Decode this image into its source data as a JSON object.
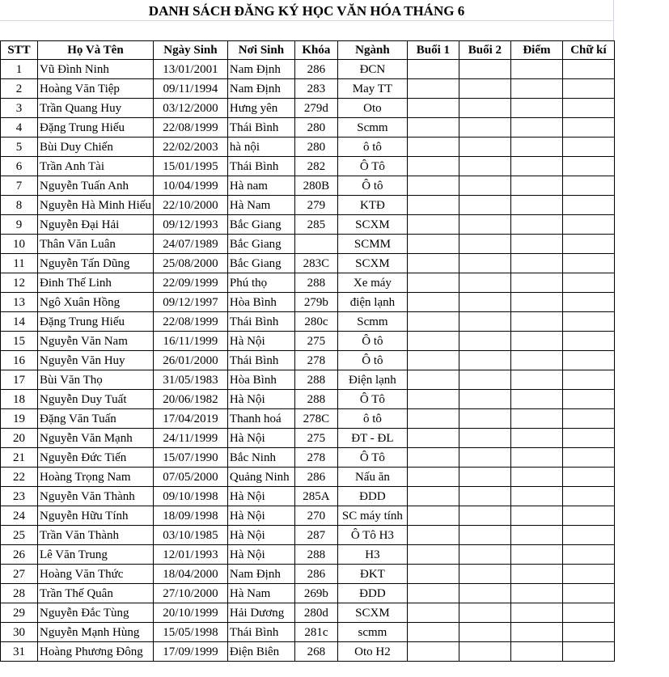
{
  "title": "DANH SÁCH ĐĂNG KÝ HỌC VĂN HÓA THÁNG 6",
  "headers": [
    "STT",
    "Họ Và Tên",
    "Ngày Sinh",
    "Nơi Sinh",
    "Khóa",
    "Ngành",
    "Buổi 1",
    "Buổi 2",
    "Điểm",
    "Chữ kí"
  ],
  "rows": [
    [
      "1",
      "Vũ Đình Ninh",
      "13/01/2001",
      "Nam Định",
      "286",
      "ĐCN"
    ],
    [
      "2",
      "Hoàng Văn Tiệp",
      "09/11/1994",
      "Nam Định",
      "283",
      "May TT"
    ],
    [
      "3",
      "Trần Quang Huy",
      "03/12/2000",
      "Hưng yên",
      "279d",
      "Oto"
    ],
    [
      "4",
      "Đặng Trung Hiếu",
      "22/08/1999",
      "Thái Bình",
      "280",
      "Scmm"
    ],
    [
      "5",
      "Bùi Duy Chiến",
      "22/02/2003",
      "hà nội",
      "280",
      "ô tô"
    ],
    [
      "6",
      "Trần Anh Tài",
      "15/01/1995",
      "Thái Bình",
      "282",
      "Ô Tô"
    ],
    [
      "7",
      "Nguyễn Tuấn Anh",
      "10/04/1999",
      "Hà nam",
      "280B",
      "Ô tô"
    ],
    [
      "8",
      "Nguyễn Hà Minh Hiếu",
      "22/10/2000",
      "Hà Nam",
      "279",
      "KTĐ"
    ],
    [
      "9",
      "Nguyễn Đại Hải",
      "09/12/1993",
      "Bắc Giang",
      "285",
      "SCXM"
    ],
    [
      "10",
      "Thân Văn Luân",
      "24/07/1989",
      "Bắc Giang",
      "",
      "SCMM"
    ],
    [
      "11",
      "Nguyễn Tấn Dũng",
      "25/08/2000",
      "Bắc Giang",
      "283C",
      "SCXM"
    ],
    [
      "12",
      "Đinh Thế Linh",
      "22/09/1999",
      "Phú thọ",
      "288",
      "Xe máy"
    ],
    [
      "13",
      "Ngô Xuân Hồng",
      "09/12/1997",
      "Hòa Bình",
      "279b",
      "điện lạnh"
    ],
    [
      "14",
      "Đặng Trung Hiếu",
      "22/08/1999",
      "Thái Bình",
      "280c",
      "Scmm"
    ],
    [
      "15",
      "Nguyễn Văn Nam",
      "16/11/1999",
      "Hà Nội",
      "275",
      "Ô tô"
    ],
    [
      "16",
      "Nguyễn Văn Huy",
      "26/01/2000",
      "Thái Bình",
      "278",
      "Ô tô"
    ],
    [
      "17",
      "Bùi Văn Thọ",
      "31/05/1983",
      "Hòa Bình",
      "288",
      "Điện lạnh"
    ],
    [
      "18",
      "Nguyễn Duy Tuất",
      "20/06/1982",
      "Hà Nội",
      "288",
      "Ô Tô"
    ],
    [
      "19",
      "Đặng Văn Tuấn",
      "17/04/2019",
      "Thanh hoá",
      "278C",
      "ô tô"
    ],
    [
      "20",
      "Nguyễn Văn Mạnh",
      "24/11/1999",
      "Hà Nội",
      "275",
      "ĐT - ĐL"
    ],
    [
      "21",
      "Nguyễn Đức Tiến",
      "15/07/1990",
      "Bắc Ninh",
      "278",
      "Ô Tô"
    ],
    [
      "22",
      "Hoàng Trọng Nam",
      "07/05/2000",
      "Quảng Ninh",
      "286",
      "Nấu ăn"
    ],
    [
      "23",
      "Nguyễn Văn Thành",
      "09/10/1998",
      "Hà Nội",
      "285A",
      "ĐDD"
    ],
    [
      "24",
      "Nguyễn Hữu Tính",
      "18/09/1998",
      "Hà Nội",
      "270",
      "SC máy tính"
    ],
    [
      "25",
      "Trần Văn Thành",
      "03/10/1985",
      "Hà Nội",
      "287",
      "Ô Tô H3"
    ],
    [
      "26",
      "Lê Văn Trung",
      "12/01/1993",
      "Hà Nội",
      "288",
      "H3"
    ],
    [
      "27",
      "Hoàng Văn Thức",
      "18/04/2000",
      "Nam Định",
      "286",
      "ĐKT"
    ],
    [
      "28",
      "Trần Thế Quân",
      "27/10/2000",
      "Hà Nam",
      "269b",
      "ĐDD"
    ],
    [
      "29",
      "Nguyễn Đắc Tùng",
      "20/10/1999",
      "Hải Dương",
      "280d",
      "SCXM"
    ],
    [
      "30",
      "Nguyễn Mạnh Hùng",
      "15/05/1998",
      "Thái Bình",
      "281c",
      "scmm"
    ],
    [
      "31",
      "Hoàng Phương Đông",
      "17/09/1999",
      "Điện Biên",
      "268",
      "Oto H2"
    ]
  ]
}
